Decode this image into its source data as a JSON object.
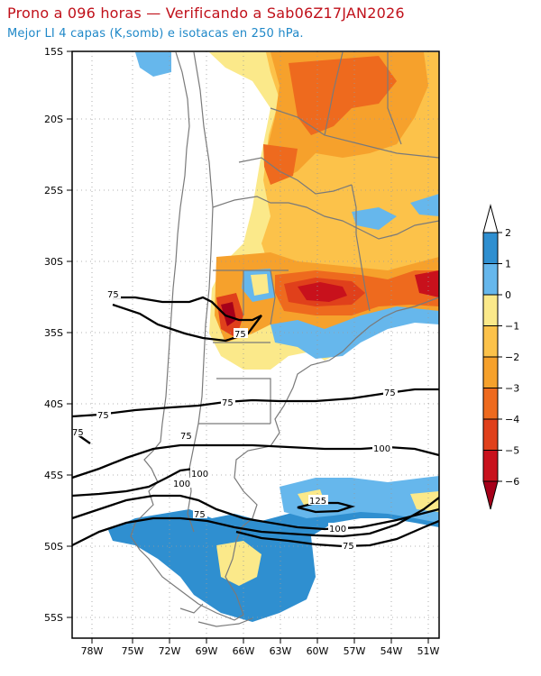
{
  "header": {
    "title": "Prono a 096 horas — Verificando a Sab06Z17JAN2026",
    "subtitle": "Mejor LI 4 capas (K,somb) e isotacas en 250 hPa."
  },
  "map": {
    "lat_labels": [
      "15S",
      "20S",
      "25S",
      "30S",
      "35S",
      "40S",
      "45S",
      "50S",
      "55S"
    ],
    "lon_labels": [
      "78W",
      "75W",
      "72W",
      "69W",
      "66W",
      "63W",
      "60W",
      "57W",
      "54W",
      "51W"
    ],
    "isotach_labels": [
      "75",
      "75",
      "75",
      "75",
      "75",
      "75",
      "75",
      "100",
      "100",
      "100",
      "75",
      "125",
      "100",
      "75"
    ]
  },
  "colorbar": {
    "ticks": [
      "2",
      "1",
      "0",
      "−1",
      "−2",
      "−3",
      "−4",
      "−5",
      "−6"
    ],
    "colors": [
      "#2f8fd0",
      "#66b7ec",
      "#fbe98a",
      "#fcc24a",
      "#f6a12c",
      "#ee6a1e",
      "#e0401b",
      "#c8111c",
      "#a6001a"
    ],
    "top_color": "#ffffff",
    "bottom_color": "#a6001a"
  }
}
